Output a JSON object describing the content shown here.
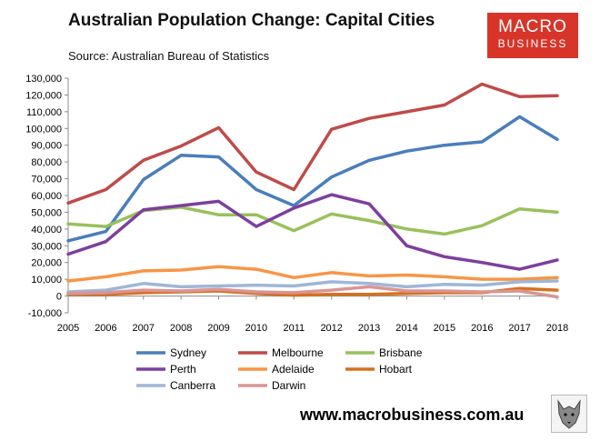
{
  "header": {
    "title": "Australian Population Change: Capital Cities",
    "subtitle": "Source: Australian Bureau of Statistics"
  },
  "logo": {
    "line1": "MACRO",
    "line2": "BUSINESS",
    "bg_color": "#d8352a"
  },
  "footer": {
    "url": "www.macrobusiness.com.au"
  },
  "chart_data": {
    "type": "line",
    "title": "Australian Population Change: Capital Cities",
    "xlabel": "",
    "ylabel": "",
    "ylim": [
      -10000,
      130000
    ],
    "y_ticks": [
      -10000,
      0,
      10000,
      20000,
      30000,
      40000,
      50000,
      60000,
      70000,
      80000,
      90000,
      100000,
      110000,
      120000,
      130000
    ],
    "y_tick_labels": [
      "-10,000",
      "0",
      "10,000",
      "20,000",
      "30,000",
      "40,000",
      "50,000",
      "60,000",
      "70,000",
      "80,000",
      "90,000",
      "100,000",
      "110,000",
      "120,000",
      "130,000"
    ],
    "categories": [
      "2005",
      "2006",
      "2007",
      "2008",
      "2009",
      "2010",
      "2011",
      "2012",
      "2013",
      "2014",
      "2015",
      "2016",
      "2017",
      "2018"
    ],
    "grid": false,
    "legend_position": "bottom",
    "series": [
      {
        "name": "Sydney",
        "color": "#4a7ebb",
        "values": [
          33000,
          38500,
          69500,
          84000,
          83000,
          63500,
          54000,
          71000,
          81000,
          86500,
          90000,
          92000,
          107000,
          93500
        ]
      },
      {
        "name": "Melbourne",
        "color": "#be4b48",
        "values": [
          55500,
          63500,
          81000,
          89500,
          100500,
          74000,
          63500,
          99500,
          106000,
          110000,
          114000,
          126500,
          119000,
          119500
        ]
      },
      {
        "name": "Brisbane",
        "color": "#98c15a",
        "values": [
          43000,
          41500,
          51000,
          53000,
          48500,
          48500,
          39000,
          49000,
          45000,
          40000,
          37000,
          42000,
          52000,
          50000
        ]
      },
      {
        "name": "Perth",
        "color": "#7d3f9e",
        "values": [
          25000,
          32500,
          51500,
          54000,
          56500,
          41500,
          52500,
          60500,
          55000,
          30000,
          23500,
          20000,
          16000,
          21500
        ]
      },
      {
        "name": "Adelaide",
        "color": "#f79646",
        "values": [
          9000,
          11500,
          15000,
          15500,
          17500,
          16000,
          11000,
          14000,
          12000,
          12500,
          11500,
          10000,
          10000,
          11000
        ]
      },
      {
        "name": "Hobart",
        "color": "#d7701f",
        "values": [
          1000,
          1000,
          2000,
          2500,
          3000,
          1500,
          500,
          1000,
          1000,
          1500,
          2000,
          2000,
          4500,
          3500
        ]
      },
      {
        "name": "Canberra",
        "color": "#9fb6d6",
        "values": [
          2500,
          3500,
          7500,
          5500,
          6000,
          6500,
          6000,
          8500,
          7500,
          5500,
          7000,
          6500,
          8500,
          9000
        ]
      },
      {
        "name": "Darwin",
        "color": "#d99594",
        "values": [
          1500,
          2000,
          3500,
          3000,
          4000,
          2500,
          2000,
          3500,
          5500,
          3000,
          3000,
          2500,
          3000,
          -500
        ]
      }
    ]
  }
}
